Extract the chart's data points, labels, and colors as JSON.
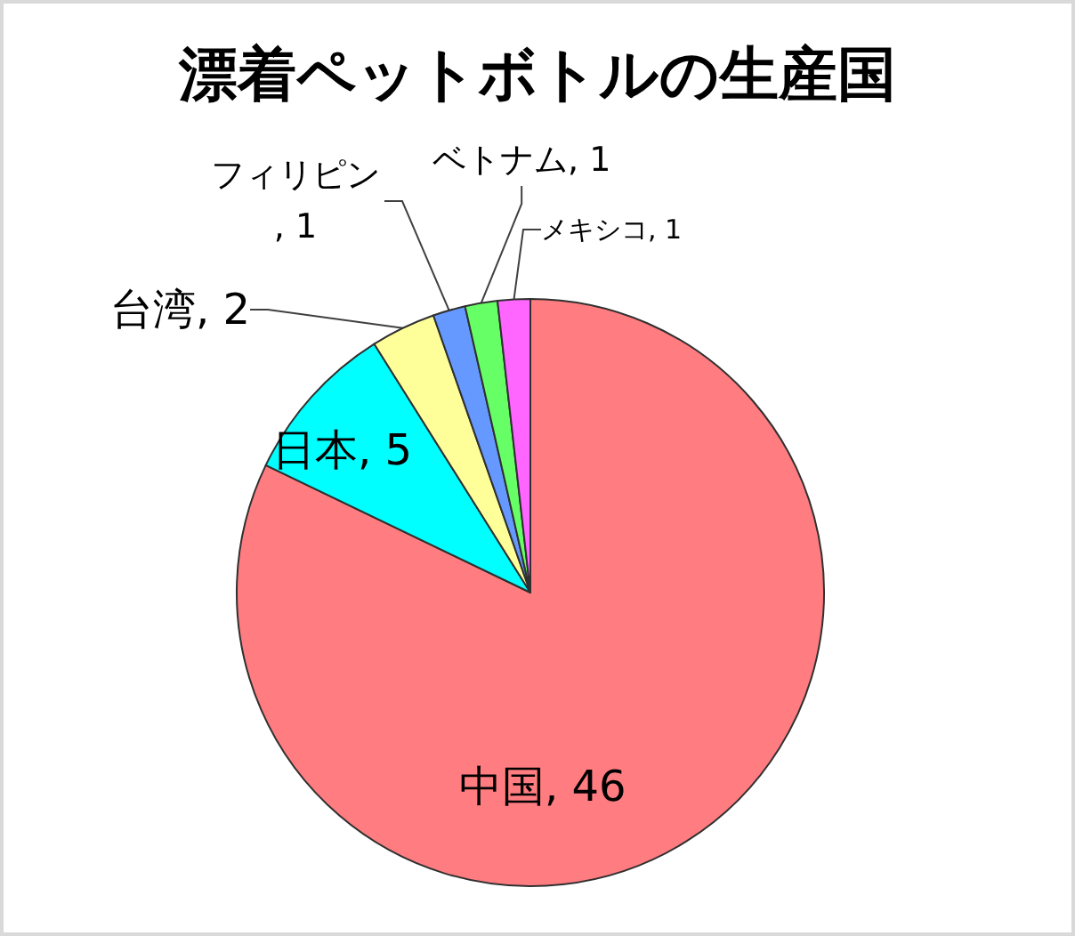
{
  "chart_data": {
    "type": "pie",
    "title": "漂着ペットボトルの生産国",
    "categories": [
      "中国",
      "日本",
      "台湾",
      "フィリピン",
      "ベトナム",
      "メキシコ"
    ],
    "values": [
      46,
      5,
      2,
      1,
      1,
      1
    ],
    "value_labels": [
      ", 46",
      ", 5",
      ", 2",
      ", 1",
      ", 1",
      ", 1"
    ],
    "colors": [
      "#ff7c80",
      "#00ffff",
      "#ffff99",
      "#6699ff",
      "#66ff66",
      "#ff66ff"
    ],
    "legend": false
  }
}
